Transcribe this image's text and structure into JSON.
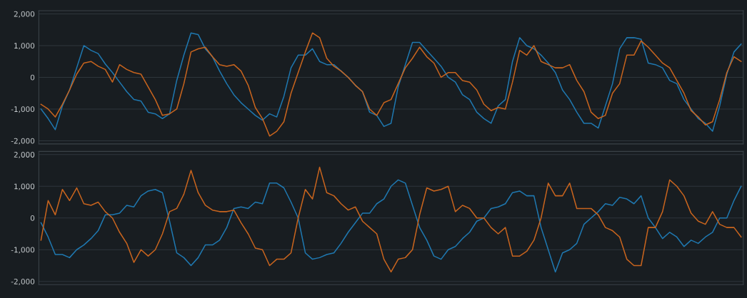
{
  "chart_data": [
    {
      "type": "line",
      "categories": [
        null,
        null,
        null,
        null,
        null,
        null,
        null,
        null,
        null,
        null,
        null,
        null,
        null,
        null,
        null,
        null,
        null,
        null,
        null,
        null,
        null,
        null,
        null,
        null,
        null,
        null,
        null,
        null,
        null,
        null,
        null,
        null,
        null,
        null,
        null,
        null,
        null,
        null,
        null,
        null,
        null,
        null,
        null,
        null,
        null,
        null,
        null,
        null,
        null,
        null,
        null,
        null,
        null,
        null,
        null,
        null,
        null,
        null,
        null,
        null,
        null,
        null,
        null,
        null,
        null,
        null,
        null,
        null,
        null,
        null,
        null,
        null,
        null,
        null,
        null,
        null,
        null,
        null,
        null,
        null,
        null,
        null,
        null,
        null,
        null,
        null,
        null,
        null,
        null,
        null,
        null,
        null,
        null,
        null,
        null,
        null,
        null,
        null,
        null
      ],
      "ylim": [
        -2100,
        2100
      ],
      "yticks": [
        {
          "value": -2000,
          "label": "-2,000"
        },
        {
          "value": -1000,
          "label": "-1,000"
        },
        0,
        {
          "value": 1000,
          "label": "1,000"
        },
        {
          "value": 2000,
          "label": "2,000"
        }
      ],
      "grid": "y",
      "tick_labels": "y",
      "series": [
        {
          "color": "#1f78b0",
          "values": [
            -1000,
            -1300,
            -1650,
            -900,
            -400,
            300,
            1000,
            850,
            750,
            420,
            150,
            -150,
            -450,
            -700,
            -750,
            -1100,
            -1150,
            -1300,
            -1150,
            -100,
            700,
            1400,
            1350,
            900,
            650,
            200,
            -200,
            -550,
            -800,
            -1000,
            -1200,
            -1350,
            -1150,
            -1250,
            -600,
            300,
            700,
            700,
            900,
            500,
            400,
            400,
            200,
            0,
            -250,
            -450,
            -1100,
            -1200,
            -1550,
            -1450,
            -300,
            400,
            1100,
            1100,
            850,
            600,
            350,
            0,
            -150,
            -550,
            -700,
            -1100,
            -1300,
            -1450,
            -900,
            -700,
            500,
            1250,
            1000,
            900,
            700,
            450,
            150,
            -400,
            -700,
            -1100,
            -1450,
            -1450,
            -1600,
            -900,
            -200,
            900,
            1250,
            1250,
            1200,
            450,
            400,
            300,
            -100,
            -200,
            -700,
            -1000,
            -1300,
            -1450,
            -1700,
            -900,
            100,
            800,
            1050
          ]
        },
        {
          "color": "#c8641e",
          "values": [
            -850,
            -1000,
            -1250,
            -850,
            -400,
            100,
            450,
            500,
            350,
            250,
            -150,
            400,
            250,
            150,
            100,
            -300,
            -700,
            -1200,
            -1150,
            -1000,
            -200,
            800,
            900,
            950,
            650,
            400,
            350,
            400,
            200,
            -250,
            -950,
            -1300,
            -1850,
            -1700,
            -1400,
            -500,
            150,
            800,
            1400,
            1250,
            600,
            350,
            200,
            0,
            -250,
            -450,
            -1000,
            -1200,
            -800,
            -700,
            -200,
            300,
            600,
            950,
            650,
            450,
            0,
            150,
            150,
            -100,
            -150,
            -400,
            -850,
            -1050,
            -950,
            -1000,
            -150,
            850,
            700,
            1000,
            500,
            400,
            300,
            300,
            400,
            -100,
            -450,
            -1100,
            -1300,
            -1200,
            -500,
            -200,
            700,
            700,
            1150,
            950,
            700,
            450,
            300,
            -100,
            -500,
            -1050,
            -1250,
            -1500,
            -1400,
            -700,
            150,
            650,
            500
          ]
        }
      ]
    },
    {
      "type": "line",
      "categories": [
        null,
        null,
        null,
        null,
        null,
        null,
        null,
        null,
        null,
        null,
        null,
        null,
        null,
        null,
        null,
        null,
        null,
        null,
        null,
        null,
        null,
        null,
        null,
        null,
        null,
        null,
        null,
        null,
        null,
        null,
        null,
        null,
        null,
        null,
        null,
        null,
        null,
        null,
        null,
        null,
        null,
        null,
        null,
        null,
        null,
        null,
        null,
        null,
        null,
        null,
        null,
        null,
        null,
        null,
        null,
        null,
        null,
        null,
        null,
        null,
        null,
        null,
        null,
        null,
        null,
        null,
        null,
        null,
        null,
        null,
        null,
        null,
        null,
        null,
        null,
        null,
        null,
        null,
        null,
        null,
        null,
        null,
        null,
        null,
        null,
        null,
        null,
        null,
        null,
        null,
        null,
        null,
        null,
        null,
        null,
        null,
        null,
        null,
        null
      ],
      "ylim": [
        -2100,
        2100
      ],
      "yticks": [
        {
          "value": -2000,
          "label": "-2,000"
        },
        {
          "value": -1000,
          "label": "-1,000"
        },
        0,
        {
          "value": 1000,
          "label": "1,000"
        },
        {
          "value": 2000,
          "label": "2,000"
        }
      ],
      "grid": "y",
      "tick_labels": "y",
      "series": [
        {
          "color": "#1f78b0",
          "values": [
            -150,
            -600,
            -1150,
            -1150,
            -1250,
            -1000,
            -850,
            -650,
            -400,
            100,
            100,
            150,
            400,
            350,
            700,
            850,
            900,
            800,
            -100,
            -1100,
            -1250,
            -1500,
            -1250,
            -850,
            -850,
            -700,
            -300,
            300,
            350,
            300,
            500,
            450,
            1100,
            1100,
            950,
            500,
            0,
            -1100,
            -1300,
            -1250,
            -1150,
            -1100,
            -800,
            -450,
            -150,
            150,
            150,
            450,
            600,
            1000,
            1200,
            1100,
            400,
            -300,
            -700,
            -1200,
            -1300,
            -1000,
            -900,
            -650,
            -450,
            -100,
            0,
            300,
            350,
            450,
            800,
            850,
            700,
            700,
            -300,
            -1000,
            -1700,
            -1100,
            -1000,
            -800,
            -200,
            0,
            200,
            450,
            400,
            650,
            600,
            450,
            700,
            0,
            -300,
            -650,
            -450,
            -600,
            -900,
            -700,
            -800,
            -600,
            -450,
            0,
            0,
            550,
            1000
          ]
        },
        {
          "color": "#c8641e",
          "values": [
            -700,
            550,
            100,
            900,
            550,
            950,
            450,
            400,
            500,
            200,
            0,
            -450,
            -800,
            -1400,
            -1000,
            -1200,
            -1000,
            -500,
            200,
            300,
            750,
            1500,
            800,
            400,
            250,
            200,
            200,
            250,
            -150,
            -500,
            -950,
            -1000,
            -1500,
            -1300,
            -1300,
            -1100,
            0,
            900,
            600,
            1600,
            800,
            700,
            450,
            250,
            350,
            -100,
            -300,
            -500,
            -1300,
            -1700,
            -1300,
            -1250,
            -1000,
            100,
            950,
            850,
            900,
            1000,
            200,
            400,
            300,
            0,
            0,
            -300,
            -500,
            -300,
            -1200,
            -1200,
            -1050,
            -700,
            0,
            1100,
            700,
            700,
            1100,
            300,
            300,
            300,
            100,
            -300,
            -400,
            -600,
            -1300,
            -1500,
            -1500,
            -300,
            -300,
            200,
            1200,
            1000,
            700,
            150,
            -100,
            -200,
            200,
            -200,
            -300,
            -300,
            -600
          ]
        }
      ]
    }
  ]
}
